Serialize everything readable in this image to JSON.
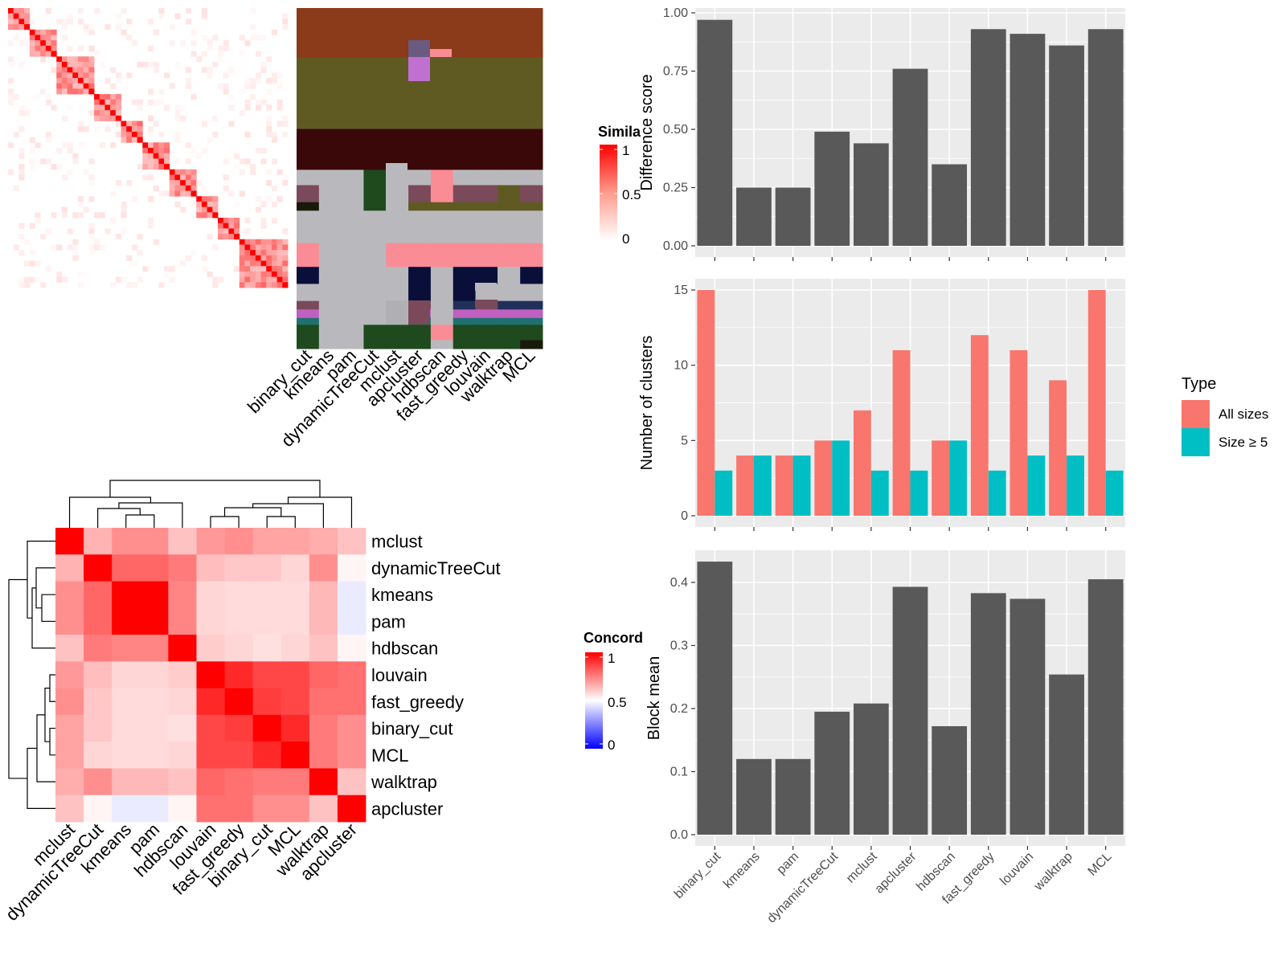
{
  "methods": [
    "binary_cut",
    "kmeans",
    "pam",
    "dynamicTreeCut",
    "mclust",
    "apcluster",
    "hdbscan",
    "fast_greedy",
    "louvain",
    "walktrap",
    "MCL"
  ],
  "colors": {
    "bar_dark": "#595959",
    "all_sizes": "#F8766D",
    "size_ge5": "#00BFC4",
    "heat_high": "#FF0000",
    "heat_mid": "#FFFFFF",
    "heat_low": "#0000FF"
  },
  "similarity_legend": {
    "title": "Simila",
    "ticks": [
      "1",
      "0.5",
      "0"
    ]
  },
  "concordance_legend": {
    "title": "Concord",
    "ticks": [
      "1",
      "0.5",
      "0"
    ]
  },
  "type_legend": {
    "title": "Type",
    "entries": [
      "All sizes",
      "Size ≥ 5"
    ]
  },
  "concordance_heatmap": {
    "row_labels": [
      "mclust",
      "dynamicTreeCut",
      "kmeans",
      "pam",
      "hdbscan",
      "louvain",
      "fast_greedy",
      "binary_cut",
      "MCL",
      "walktrap",
      "apcluster"
    ],
    "col_labels": [
      "mclust",
      "dynamicTreeCut",
      "kmeans",
      "pam",
      "hdbscan",
      "louvain",
      "fast_greedy",
      "binary_cut",
      "MCL",
      "walktrap",
      "apcluster"
    ],
    "values": [
      [
        1.0,
        0.65,
        0.72,
        0.72,
        0.62,
        0.7,
        0.72,
        0.68,
        0.68,
        0.66,
        0.62
      ],
      [
        0.65,
        1.0,
        0.8,
        0.8,
        0.76,
        0.63,
        0.61,
        0.61,
        0.58,
        0.72,
        0.52
      ],
      [
        0.72,
        0.8,
        1.0,
        1.0,
        0.74,
        0.58,
        0.57,
        0.57,
        0.57,
        0.64,
        0.46
      ],
      [
        0.72,
        0.8,
        1.0,
        1.0,
        0.74,
        0.58,
        0.57,
        0.57,
        0.57,
        0.64,
        0.46
      ],
      [
        0.62,
        0.76,
        0.74,
        0.74,
        1.0,
        0.6,
        0.58,
        0.56,
        0.58,
        0.62,
        0.52
      ],
      [
        0.7,
        0.63,
        0.58,
        0.58,
        0.6,
        1.0,
        0.92,
        0.86,
        0.86,
        0.8,
        0.78
      ],
      [
        0.72,
        0.61,
        0.57,
        0.57,
        0.58,
        0.92,
        1.0,
        0.88,
        0.86,
        0.78,
        0.78
      ],
      [
        0.68,
        0.61,
        0.57,
        0.57,
        0.56,
        0.86,
        0.88,
        1.0,
        0.92,
        0.76,
        0.72
      ],
      [
        0.68,
        0.58,
        0.57,
        0.57,
        0.58,
        0.86,
        0.86,
        0.92,
        1.0,
        0.76,
        0.72
      ],
      [
        0.66,
        0.72,
        0.64,
        0.64,
        0.62,
        0.8,
        0.78,
        0.76,
        0.76,
        1.0,
        0.62
      ],
      [
        0.62,
        0.52,
        0.46,
        0.46,
        0.52,
        0.78,
        0.78,
        0.72,
        0.72,
        0.62,
        1.0
      ]
    ]
  },
  "chart_data": [
    {
      "type": "bar",
      "categories": [
        "binary_cut",
        "kmeans",
        "pam",
        "dynamicTreeCut",
        "mclust",
        "apcluster",
        "hdbscan",
        "fast_greedy",
        "louvain",
        "walktrap",
        "MCL"
      ],
      "values": [
        0.97,
        0.25,
        0.25,
        0.49,
        0.44,
        0.76,
        0.35,
        0.93,
        0.91,
        0.86,
        0.93
      ],
      "ylabel": "Difference score",
      "ylim": [
        0,
        1
      ],
      "yticks": [
        "0.00",
        "0.25",
        "0.50",
        "0.75",
        "1.00"
      ],
      "grid": true
    },
    {
      "type": "bar",
      "categories": [
        "binary_cut",
        "kmeans",
        "pam",
        "dynamicTreeCut",
        "mclust",
        "apcluster",
        "hdbscan",
        "fast_greedy",
        "louvain",
        "walktrap",
        "MCL"
      ],
      "series": [
        {
          "name": "All sizes",
          "values": [
            15,
            4,
            4,
            5,
            7,
            11,
            5,
            12,
            11,
            9,
            15
          ]
        },
        {
          "name": "Size ≥ 5",
          "values": [
            3,
            4,
            4,
            5,
            3,
            3,
            5,
            3,
            4,
            4,
            3
          ]
        }
      ],
      "ylabel": "Number of clusters",
      "ylim": [
        0,
        15.8
      ],
      "yticks": [
        "0",
        "5",
        "10",
        "15"
      ],
      "legend": "right",
      "grid": true
    },
    {
      "type": "bar",
      "categories": [
        "binary_cut",
        "kmeans",
        "pam",
        "dynamicTreeCut",
        "mclust",
        "apcluster",
        "hdbscan",
        "fast_greedy",
        "louvain",
        "walktrap",
        "MCL"
      ],
      "values": [
        0.433,
        0.12,
        0.12,
        0.195,
        0.208,
        0.393,
        0.172,
        0.383,
        0.374,
        0.254,
        0.405
      ],
      "ylabel": "Block mean",
      "ylim": [
        0,
        0.455
      ],
      "yticks": [
        "0.0",
        "0.1",
        "0.2",
        "0.3",
        "0.4"
      ],
      "grid": true
    }
  ]
}
